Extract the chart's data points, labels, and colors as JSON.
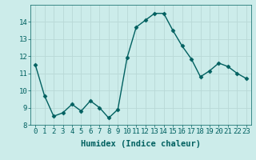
{
  "x": [
    0,
    1,
    2,
    3,
    4,
    5,
    6,
    7,
    8,
    9,
    10,
    11,
    12,
    13,
    14,
    15,
    16,
    17,
    18,
    19,
    20,
    21,
    22,
    23
  ],
  "y": [
    11.5,
    9.7,
    8.5,
    8.7,
    9.2,
    8.8,
    9.4,
    9.0,
    8.4,
    8.9,
    11.9,
    13.7,
    14.1,
    14.5,
    14.5,
    13.5,
    12.6,
    11.85,
    10.8,
    11.15,
    11.6,
    11.4,
    11.0,
    10.7
  ],
  "line_color": "#006060",
  "marker": "D",
  "marker_size": 2.5,
  "xlabel": "Humidex (Indice chaleur)",
  "xlim": [
    -0.5,
    23.5
  ],
  "ylim": [
    8,
    15
  ],
  "yticks": [
    8,
    9,
    10,
    11,
    12,
    13,
    14
  ],
  "xticks": [
    0,
    1,
    2,
    3,
    4,
    5,
    6,
    7,
    8,
    9,
    10,
    11,
    12,
    13,
    14,
    15,
    16,
    17,
    18,
    19,
    20,
    21,
    22,
    23
  ],
  "xtick_labels": [
    "0",
    "1",
    "2",
    "3",
    "4",
    "5",
    "6",
    "7",
    "8",
    "9",
    "10",
    "11",
    "12",
    "13",
    "14",
    "15",
    "16",
    "17",
    "18",
    "19",
    "20",
    "21",
    "22",
    "23"
  ],
  "background_color": "#ccecea",
  "grid_color": "#b8d8d6",
  "tick_label_fontsize": 6.5,
  "xlabel_fontsize": 7.5,
  "line_width": 1.0
}
